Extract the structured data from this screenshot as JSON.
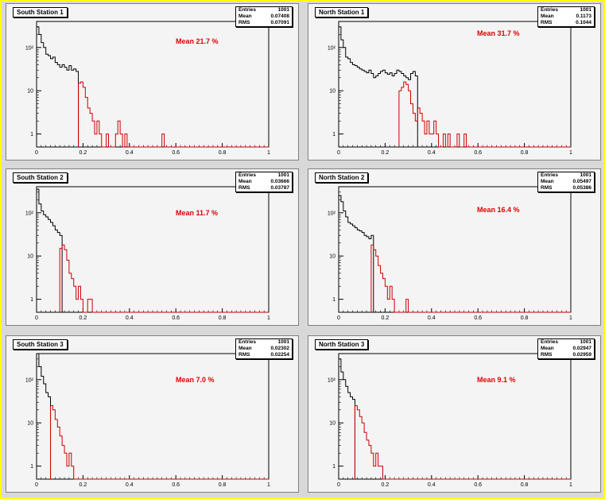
{
  "chart_data": [
    {
      "type": "histogram",
      "title": "South Station 1",
      "stats": {
        "entries_label": "Entries",
        "entries": "1001",
        "mean_label": "Mean",
        "mean": "0.07408",
        "rms_label": "RMS",
        "rms": "0.07091"
      },
      "annotation": "Mean 21.7 %",
      "xlim": [
        0,
        1
      ],
      "ylog": true,
      "ylim": [
        0.5,
        400
      ],
      "xticks": [
        "0",
        "0.2",
        "0.4",
        "0.6",
        "0.8",
        "1"
      ],
      "yticks": [
        "1",
        "10",
        "10²"
      ],
      "bin_width": 0.01,
      "series": [
        {
          "color": "#000000",
          "x0": 0.0,
          "values": [
            300,
            200,
            130,
            100,
            70,
            65,
            55,
            60,
            45,
            40,
            35,
            40,
            35,
            30,
            38,
            30,
            32,
            28
          ]
        },
        {
          "color": "#cc0000",
          "x0": 0.18,
          "values": [
            15,
            16,
            12,
            7,
            4,
            3,
            2,
            1,
            2,
            1,
            0,
            0,
            1,
            0,
            0,
            0,
            1,
            2,
            1,
            0,
            1,
            0,
            0,
            0,
            0,
            0,
            0,
            0,
            0,
            0,
            0,
            0,
            0,
            0,
            0,
            0,
            1
          ]
        }
      ]
    },
    {
      "type": "histogram",
      "title": "North Station 1",
      "stats": {
        "entries_label": "Entries",
        "entries": "1001",
        "mean_label": "Mean",
        "mean": "0.1173",
        "rms_label": "RMS",
        "rms": "0.1044"
      },
      "annotation": "Mean 31.7 %",
      "xlim": [
        0,
        1
      ],
      "ylog": true,
      "ylim": [
        0.5,
        400
      ],
      "xticks": [
        "0",
        "0.2",
        "0.4",
        "0.6",
        "0.8",
        "1"
      ],
      "yticks": [
        "1",
        "10",
        "10²"
      ],
      "bin_width": 0.01,
      "series": [
        {
          "color": "#000000",
          "x0": 0.0,
          "values": [
            300,
            150,
            100,
            60,
            55,
            45,
            40,
            38,
            35,
            32,
            30,
            28,
            26,
            30,
            25,
            20,
            22,
            25,
            28,
            30,
            26,
            24,
            26,
            22,
            25,
            30,
            28,
            25,
            22,
            20,
            18,
            25,
            28,
            22
          ]
        },
        {
          "color": "#cc0000",
          "x0": 0.26,
          "values": [
            10,
            12,
            16,
            14,
            10,
            5,
            3,
            2,
            4,
            3,
            2,
            1,
            2,
            1,
            1,
            2,
            1,
            0,
            0,
            1,
            0,
            1,
            0,
            0,
            0,
            1,
            0,
            0,
            1
          ]
        }
      ]
    },
    {
      "type": "histogram",
      "title": "South Station 2",
      "stats": {
        "entries_label": "Entries",
        "entries": "1001",
        "mean_label": "Mean",
        "mean": "0.03666",
        "rms_label": "RMS",
        "rms": "0.03787"
      },
      "annotation": "Mean 11.7 %",
      "xlim": [
        0,
        1
      ],
      "ylog": true,
      "ylim": [
        0.5,
        400
      ],
      "xticks": [
        "0",
        "0.2",
        "0.4",
        "0.6",
        "0.8",
        "1"
      ],
      "yticks": [
        "1",
        "10",
        "10²"
      ],
      "bin_width": 0.01,
      "series": [
        {
          "color": "#000000",
          "x0": 0.0,
          "values": [
            350,
            160,
            110,
            90,
            80,
            70,
            60,
            50,
            40,
            35,
            30
          ]
        },
        {
          "color": "#cc0000",
          "x0": 0.1,
          "values": [
            15,
            18,
            14,
            8,
            4,
            3,
            2,
            1,
            2,
            1,
            0,
            0,
            1,
            1
          ]
        }
      ]
    },
    {
      "type": "histogram",
      "title": "North Station 2",
      "stats": {
        "entries_label": "Entries",
        "entries": "1001",
        "mean_label": "Mean",
        "mean": "0.05497",
        "rms_label": "RMS",
        "rms": "0.05386"
      },
      "annotation": "Mean 16.4 %",
      "xlim": [
        0,
        1
      ],
      "ylog": true,
      "ylim": [
        0.5,
        400
      ],
      "xticks": [
        "0",
        "0.2",
        "0.4",
        "0.6",
        "0.8",
        "1"
      ],
      "yticks": [
        "1",
        "10",
        "10²"
      ],
      "bin_width": 0.01,
      "series": [
        {
          "color": "#000000",
          "x0": 0.0,
          "values": [
            250,
            180,
            110,
            80,
            60,
            55,
            50,
            45,
            40,
            38,
            35,
            30,
            28,
            25,
            30
          ]
        },
        {
          "color": "#cc0000",
          "x0": 0.14,
          "values": [
            18,
            14,
            10,
            6,
            4,
            3,
            2,
            1,
            2,
            1,
            0,
            0,
            0,
            0,
            0,
            1
          ]
        }
      ]
    },
    {
      "type": "histogram",
      "title": "South Station 3",
      "stats": {
        "entries_label": "Entries",
        "entries": "1001",
        "mean_label": "Mean",
        "mean": "0.02302",
        "rms_label": "RMS",
        "rms": "0.02254"
      },
      "annotation": "Mean 7.0 %",
      "xlim": [
        0,
        1
      ],
      "ylog": true,
      "ylim": [
        0.5,
        400
      ],
      "xticks": [
        "0",
        "0.2",
        "0.4",
        "0.6",
        "0.8",
        "1"
      ],
      "yticks": [
        "1",
        "10",
        "10²"
      ],
      "bin_width": 0.01,
      "series": [
        {
          "color": "#000000",
          "x0": 0.0,
          "values": [
            400,
            200,
            120,
            80,
            50,
            40
          ]
        },
        {
          "color": "#cc0000",
          "x0": 0.06,
          "values": [
            25,
            20,
            12,
            8,
            5,
            3,
            2,
            1,
            2,
            1
          ]
        }
      ]
    },
    {
      "type": "histogram",
      "title": "North Station 3",
      "stats": {
        "entries_label": "Entries",
        "entries": "1001",
        "mean_label": "Mean",
        "mean": "0.02947",
        "rms_label": "RMS",
        "rms": "0.02959"
      },
      "annotation": "Mean 9.1 %",
      "xlim": [
        0,
        1
      ],
      "ylog": true,
      "ylim": [
        0.5,
        400
      ],
      "xticks": [
        "0",
        "0.2",
        "0.4",
        "0.6",
        "0.8",
        "1"
      ],
      "yticks": [
        "1",
        "10",
        "10²"
      ],
      "bin_width": 0.01,
      "series": [
        {
          "color": "#000000",
          "x0": 0.0,
          "values": [
            300,
            150,
            100,
            70,
            50,
            40,
            35
          ]
        },
        {
          "color": "#cc0000",
          "x0": 0.07,
          "values": [
            25,
            20,
            14,
            10,
            6,
            4,
            3,
            2,
            1,
            2,
            1,
            1
          ]
        }
      ]
    }
  ]
}
